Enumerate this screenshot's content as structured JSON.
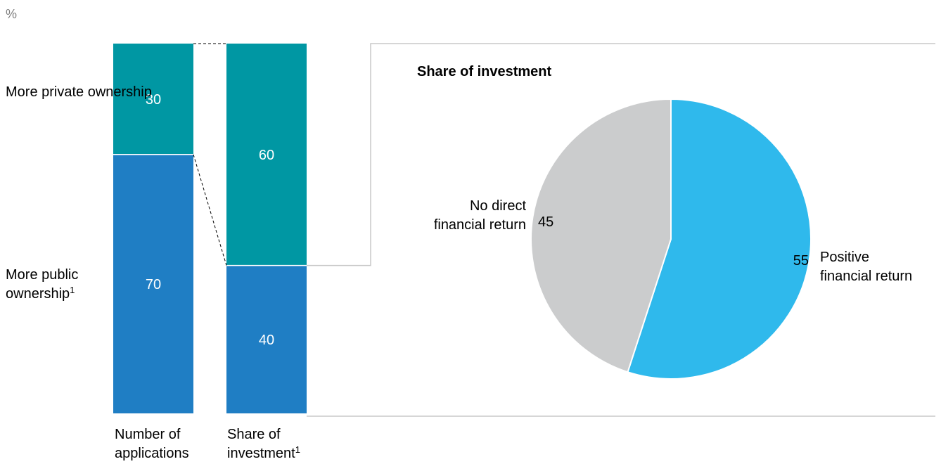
{
  "unit": "%",
  "chart_data": [
    {
      "type": "bar",
      "stacked": true,
      "categories": [
        "Number of applications",
        "Share of investment"
      ],
      "category_superscripts": [
        "",
        "1"
      ],
      "series": [
        {
          "name": "More public ownership",
          "name_superscript": "1",
          "values": [
            70,
            40
          ],
          "color": "#1f7ec4"
        },
        {
          "name": "More private ownership",
          "name_superscript": "",
          "values": [
            30,
            60
          ],
          "color": "#0097a3"
        }
      ],
      "ylim": [
        0,
        100
      ],
      "data_labels": true
    },
    {
      "type": "pie",
      "title": "Share of investment",
      "slices": [
        {
          "label_lines": [
            "Positive",
            "financial return"
          ],
          "value": 55,
          "color": "#2fb9ec"
        },
        {
          "label_lines": [
            "No direct",
            "financial return"
          ],
          "value": 45,
          "color": "#cbcccd"
        }
      ]
    }
  ]
}
